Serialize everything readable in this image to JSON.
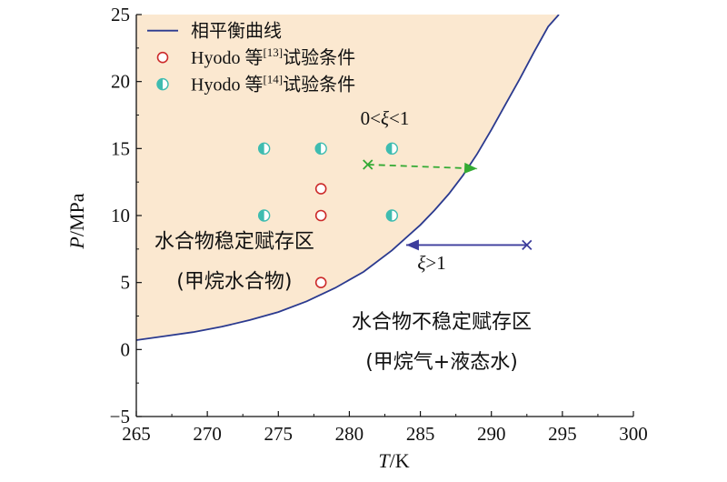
{
  "chart_data": {
    "type": "scatter",
    "x_label_italic": "T",
    "x_label_unit": "/K",
    "y_label_italic": "P",
    "y_label_unit": "/MPa",
    "xlim": [
      265,
      300
    ],
    "ylim": [
      -5,
      25
    ],
    "x_ticks": [
      265,
      270,
      275,
      280,
      285,
      290,
      295,
      300
    ],
    "y_ticks": [
      -5,
      0,
      5,
      10,
      15,
      20,
      25
    ],
    "x_tick_labels": [
      "265",
      "270",
      "275",
      "280",
      "285",
      "290",
      "295",
      "300"
    ],
    "y_tick_labels": [
      "−5",
      "0",
      "5",
      "10",
      "15",
      "20",
      "25"
    ],
    "grid": false,
    "legend_position": "top-left",
    "phase_curve": {
      "name": "相平衡曲线",
      "color": "#2b3a8f",
      "x": [
        265,
        267,
        269,
        271,
        273,
        275,
        277,
        279,
        281,
        283,
        285,
        286,
        287,
        288,
        289,
        290,
        291,
        292,
        293,
        294,
        294.75
      ],
      "y": [
        0.7,
        1.0,
        1.3,
        1.7,
        2.2,
        2.8,
        3.6,
        4.6,
        5.8,
        7.4,
        9.3,
        10.4,
        11.6,
        13.0,
        14.6,
        16.4,
        18.3,
        20.2,
        22.2,
        24.1,
        25.0
      ]
    },
    "series": [
      {
        "label_prefix": "Hyodo 等",
        "ref": "[13]",
        "label_suffix": "试验条件",
        "marker": "open-circle",
        "color": "#cc2a2a",
        "x": [
          278,
          278,
          278
        ],
        "y": [
          5,
          10,
          12
        ]
      },
      {
        "label_prefix": "Hyodo 等",
        "ref": "[14]",
        "label_suffix": "试验条件",
        "marker": "half-filled-circle",
        "color": "#3fbcb0",
        "x": [
          274,
          278,
          283,
          274,
          283
        ],
        "y": [
          15,
          15,
          15,
          10,
          10
        ]
      }
    ],
    "regions": {
      "stable_fill_color": "#fbe8d0",
      "stable_line1": "水合物稳定赋存区",
      "stable_line2": "(甲烷水合物)",
      "unstable_line1": "水合物不稳定赋存区",
      "unstable_line2": "(甲烷气+液态水)",
      "label_color": "#c2277c"
    },
    "arrows": [
      {
        "style": "dashed",
        "color": "#33aa33",
        "x_start": 281.3,
        "x_end": 289,
        "y_start": 13.8,
        "y_end": 13.5,
        "label_pre": "0<",
        "label_var": "ξ",
        "label_post": "<1",
        "label_x": 282.5,
        "label_y": 16.8
      },
      {
        "style": "solid",
        "color": "#3d3d9c",
        "x_start": 292.5,
        "x_end": 284,
        "y_start": 7.8,
        "y_end": 7.8,
        "label_pre": "",
        "label_var": "ξ",
        "label_post": ">1",
        "label_x": 285.8,
        "label_y": 6.0
      }
    ]
  }
}
